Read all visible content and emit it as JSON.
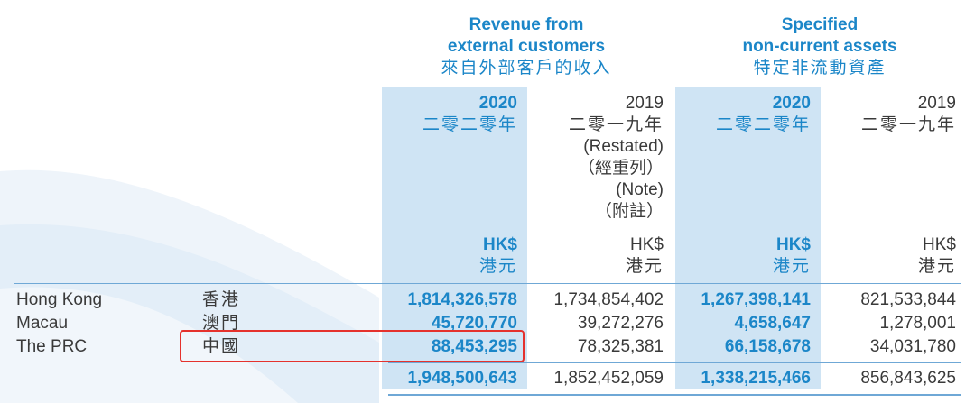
{
  "headers": {
    "revenue": {
      "en_line1": "Revenue from",
      "en_line2": "external customers",
      "zh": "來自外部客戶的收入"
    },
    "assets": {
      "en_line1": "Specified",
      "en_line2": "non-current assets",
      "zh": "特定非流動資產"
    }
  },
  "columns": [
    {
      "year": "2020",
      "year_zh": "二零二零年",
      "currency": "HK$",
      "currency_zh": "港元"
    },
    {
      "year": "2019",
      "year_zh": "二零一九年",
      "restated": "(Restated)",
      "restated_zh": "（經重列）",
      "note": "(Note)",
      "note_zh": "（附註）",
      "currency": "HK$",
      "currency_zh": "港元"
    },
    {
      "year": "2020",
      "year_zh": "二零二零年",
      "currency": "HK$",
      "currency_zh": "港元"
    },
    {
      "year": "2019",
      "year_zh": "二零一九年",
      "currency": "HK$",
      "currency_zh": "港元"
    }
  ],
  "rows": [
    {
      "label": "Hong Kong",
      "label_zh": "香港",
      "values": [
        "1,814,326,578",
        "1,734,854,402",
        "1,267,398,141",
        "821,533,844"
      ]
    },
    {
      "label": "Macau",
      "label_zh": "澳門",
      "values": [
        "45,720,770",
        "39,272,276",
        "4,658,647",
        "1,278,001"
      ]
    },
    {
      "label": "The PRC",
      "label_zh": "中國",
      "values": [
        "88,453,295",
        "78,325,381",
        "66,158,678",
        "34,031,780"
      ]
    }
  ],
  "totals": [
    "1,948,500,643",
    "1,852,452,059",
    "1,338,215,466",
    "856,843,625"
  ],
  "colors": {
    "accent": "#1b86c8",
    "shade": "#cfe4f4",
    "highlight": "#e5322d"
  }
}
